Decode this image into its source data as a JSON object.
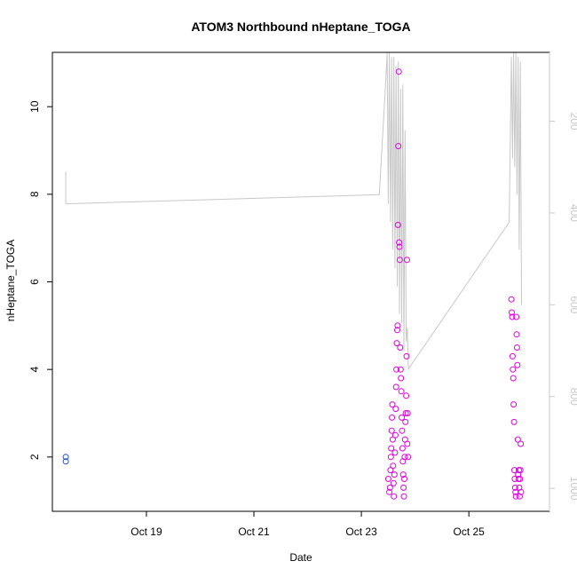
{
  "chart_data": {
    "type": "scatter",
    "title": "ATOM3 Northbound nHeptane_TOGA",
    "xlabel": "Date",
    "ylabel": "nHeptane_TOGA",
    "xlim": [
      "2017-10-17T06:00",
      "2017-10-26T12:00"
    ],
    "ylim": [
      0.76,
      11.24
    ],
    "x_ticks": [
      "2017-10-19",
      "2017-10-21",
      "2017-10-23",
      "2017-10-25"
    ],
    "x_tick_labels": [
      "Oct 19",
      "Oct 21",
      "Oct 23",
      "Oct 25"
    ],
    "y_ticks": [
      2,
      4,
      6,
      8,
      10
    ],
    "y_tick_labels": [
      "2",
      "4",
      "6",
      "8",
      "10"
    ],
    "y2_axis": {
      "note_label": "",
      "direction": "inverted",
      "lim": [
        1050,
        50
      ],
      "ticks": [
        200,
        400,
        600,
        800,
        1000
      ],
      "tick_labels": [
        "200",
        "400",
        "600",
        "800",
        "1000"
      ],
      "color": "#c8c8c8"
    },
    "series": [
      {
        "color": "#1f4fd6",
        "points": [
          [
            "2017-10-17T12:00",
            2.0
          ],
          [
            "2017-10-17T12:00",
            1.9
          ]
        ]
      },
      {
        "color": "#e100e1",
        "points": [
          [
            "2017-10-23T12:00",
            1.5
          ],
          [
            "2017-10-23T12:30",
            1.2
          ],
          [
            "2017-10-23T12:45",
            1.3
          ],
          [
            "2017-10-23T13:00",
            1.7
          ],
          [
            "2017-10-23T13:10",
            2.0
          ],
          [
            "2017-10-23T13:20",
            2.2
          ],
          [
            "2017-10-23T13:30",
            2.6
          ],
          [
            "2017-10-23T13:40",
            2.9
          ],
          [
            "2017-10-23T13:50",
            3.2
          ],
          [
            "2017-10-23T14:00",
            2.4
          ],
          [
            "2017-10-23T14:10",
            1.8
          ],
          [
            "2017-10-23T14:20",
            1.4
          ],
          [
            "2017-10-23T14:30",
            1.1
          ],
          [
            "2017-10-23T14:45",
            1.6
          ],
          [
            "2017-10-23T15:00",
            2.1
          ],
          [
            "2017-10-23T15:10",
            2.5
          ],
          [
            "2017-10-23T15:20",
            3.1
          ],
          [
            "2017-10-23T15:30",
            3.6
          ],
          [
            "2017-10-23T15:40",
            4.0
          ],
          [
            "2017-10-23T15:50",
            4.6
          ],
          [
            "2017-10-23T16:00",
            4.9
          ],
          [
            "2017-10-23T16:10",
            5.0
          ],
          [
            "2017-10-23T16:20",
            7.3
          ],
          [
            "2017-10-23T16:30",
            9.1
          ],
          [
            "2017-10-23T16:40",
            10.8
          ],
          [
            "2017-10-23T16:50",
            6.9
          ],
          [
            "2017-10-23T17:00",
            6.8
          ],
          [
            "2017-10-23T17:10",
            6.5
          ],
          [
            "2017-10-23T17:20",
            4.5
          ],
          [
            "2017-10-23T17:30",
            4.0
          ],
          [
            "2017-10-23T17:40",
            3.8
          ],
          [
            "2017-10-23T17:50",
            3.5
          ],
          [
            "2017-10-23T18:00",
            2.9
          ],
          [
            "2017-10-23T18:10",
            2.6
          ],
          [
            "2017-10-23T18:20",
            2.2
          ],
          [
            "2017-10-23T18:30",
            1.9
          ],
          [
            "2017-10-23T18:40",
            1.6
          ],
          [
            "2017-10-23T18:50",
            1.3
          ],
          [
            "2017-10-23T19:00",
            1.1
          ],
          [
            "2017-10-23T19:10",
            1.5
          ],
          [
            "2017-10-23T19:20",
            2.0
          ],
          [
            "2017-10-23T19:30",
            2.4
          ],
          [
            "2017-10-23T19:40",
            2.8
          ],
          [
            "2017-10-23T19:50",
            3.0
          ],
          [
            "2017-10-23T20:00",
            3.4
          ],
          [
            "2017-10-23T20:10",
            4.3
          ],
          [
            "2017-10-23T20:20",
            6.5
          ],
          [
            "2017-10-23T20:30",
            2.3
          ],
          [
            "2017-10-23T20:40",
            3.0
          ],
          [
            "2017-10-23T20:50",
            2.0
          ],
          [
            "2017-10-25T19:00",
            5.6
          ],
          [
            "2017-10-25T19:10",
            5.3
          ],
          [
            "2017-10-25T19:20",
            5.2
          ],
          [
            "2017-10-25T19:30",
            4.3
          ],
          [
            "2017-10-25T19:40",
            4.0
          ],
          [
            "2017-10-25T19:50",
            3.8
          ],
          [
            "2017-10-25T20:00",
            3.2
          ],
          [
            "2017-10-25T20:10",
            2.8
          ],
          [
            "2017-10-25T20:20",
            1.7
          ],
          [
            "2017-10-25T20:30",
            1.5
          ],
          [
            "2017-10-25T20:40",
            1.3
          ],
          [
            "2017-10-25T20:50",
            1.2
          ],
          [
            "2017-10-25T21:00",
            1.1
          ],
          [
            "2017-10-25T21:10",
            5.2
          ],
          [
            "2017-10-25T21:20",
            4.8
          ],
          [
            "2017-10-25T21:30",
            4.5
          ],
          [
            "2017-10-25T21:40",
            4.1
          ],
          [
            "2017-10-25T21:50",
            2.4
          ],
          [
            "2017-10-25T22:00",
            1.6
          ],
          [
            "2017-10-25T22:10",
            1.5
          ],
          [
            "2017-10-25T22:20",
            1.7
          ],
          [
            "2017-10-25T22:30",
            1.3
          ],
          [
            "2017-10-25T22:40",
            1.1
          ],
          [
            "2017-10-25T22:50",
            1.5
          ],
          [
            "2017-10-25T23:00",
            1.7
          ],
          [
            "2017-10-25T23:10",
            2.3
          ],
          [
            "2017-10-25T23:20",
            1.2
          ]
        ]
      },
      {
        "type": "line",
        "axis": "y2",
        "color": "#c8c8c8",
        "points": [
          [
            "2017-10-17T12:00",
            310
          ],
          [
            "2017-10-17T12:00",
            380
          ],
          [
            "2017-10-23T08:00",
            360
          ],
          [
            "2017-10-23T11:00",
            100
          ],
          [
            "2017-10-23T11:30",
            50
          ],
          [
            "2017-10-23T12:00",
            380
          ],
          [
            "2017-10-23T12:30",
            50
          ],
          [
            "2017-10-23T13:00",
            420
          ],
          [
            "2017-10-23T13:30",
            60
          ],
          [
            "2017-10-23T14:00",
            480
          ],
          [
            "2017-10-23T14:30",
            60
          ],
          [
            "2017-10-23T15:00",
            520
          ],
          [
            "2017-10-23T15:30",
            80
          ],
          [
            "2017-10-23T16:00",
            560
          ],
          [
            "2017-10-23T16:30",
            70
          ],
          [
            "2017-10-23T17:00",
            620
          ],
          [
            "2017-10-23T17:30",
            130
          ],
          [
            "2017-10-23T18:00",
            640
          ],
          [
            "2017-10-23T18:30",
            120
          ],
          [
            "2017-10-23T19:00",
            700
          ],
          [
            "2017-10-23T19:30",
            220
          ],
          [
            "2017-10-23T20:00",
            680
          ],
          [
            "2017-10-23T20:30",
            650
          ],
          [
            "2017-10-23T21:00",
            740
          ],
          [
            "2017-10-25T18:00",
            420
          ],
          [
            "2017-10-25T19:00",
            60
          ],
          [
            "2017-10-25T19:30",
            280
          ],
          [
            "2017-10-25T20:00",
            50
          ],
          [
            "2017-10-25T20:30",
            300
          ],
          [
            "2017-10-25T21:00",
            50
          ],
          [
            "2017-10-25T21:30",
            360
          ],
          [
            "2017-10-25T22:00",
            60
          ],
          [
            "2017-10-25T22:30",
            480
          ],
          [
            "2017-10-25T23:00",
            70
          ],
          [
            "2017-10-25T23:30",
            600
          ]
        ]
      }
    ]
  }
}
